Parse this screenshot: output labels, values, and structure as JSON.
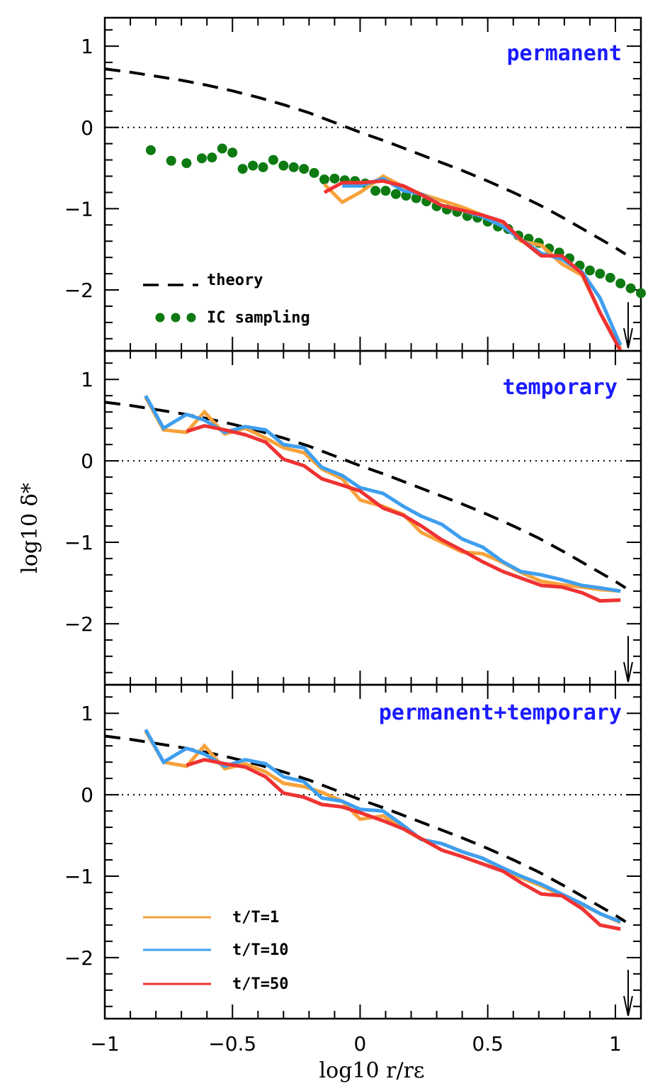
{
  "chart_data": {
    "type": "line",
    "layout": "3 stacked panels sharing x axis",
    "xlabel": "log10 r/rε",
    "ylabel": "log10 δ*",
    "xlim": [
      -1,
      1.1
    ],
    "ylim": [
      -2.75,
      1.35
    ],
    "x_ticks": [
      -1,
      -0.5,
      0,
      0.5,
      1
    ],
    "x_tick_labels": [
      "−1",
      "−0.5",
      "0",
      "0.5",
      "1"
    ],
    "y_ticks": [
      1,
      0,
      -1,
      -2
    ],
    "y_tick_labels": [
      "1",
      "0",
      "−1",
      "−2"
    ],
    "colors": {
      "t1": "#f7a23b",
      "t10": "#3f9fef",
      "t50": "#ef3232",
      "ic": "#0d7a12",
      "theory": "#000000",
      "panel_label": "#1b1bff"
    },
    "theory": {
      "x": [
        -1.0,
        -0.9,
        -0.8,
        -0.7,
        -0.6,
        -0.5,
        -0.4,
        -0.3,
        -0.2,
        -0.1,
        0.0,
        0.1,
        0.2,
        0.3,
        0.4,
        0.5,
        0.6,
        0.7,
        0.8,
        0.9,
        1.0,
        1.04
      ],
      "y": [
        0.72,
        0.68,
        0.63,
        0.58,
        0.52,
        0.45,
        0.37,
        0.28,
        0.18,
        0.06,
        -0.06,
        -0.17,
        -0.29,
        -0.41,
        -0.53,
        -0.66,
        -0.8,
        -0.95,
        -1.12,
        -1.3,
        -1.48,
        -1.56
      ]
    },
    "upper_limit_arrow": {
      "x": 1.05,
      "from": -2.15,
      "to": -2.75
    },
    "panels": [
      {
        "label": "permanent",
        "ic_sampling": {
          "name": "IC sampling",
          "x": [
            -0.82,
            -0.74,
            -0.68,
            -0.62,
            -0.58,
            -0.54,
            -0.5,
            -0.46,
            -0.42,
            -0.38,
            -0.34,
            -0.3,
            -0.26,
            -0.22,
            -0.18,
            -0.14,
            -0.1,
            -0.06,
            -0.02,
            0.02,
            0.06,
            0.1,
            0.14,
            0.18,
            0.22,
            0.26,
            0.3,
            0.34,
            0.38,
            0.42,
            0.46,
            0.5,
            0.54,
            0.58,
            0.62,
            0.66,
            0.7,
            0.74,
            0.78,
            0.82,
            0.86,
            0.9,
            0.94,
            0.98,
            1.02,
            1.06,
            1.1
          ],
          "y": [
            -0.28,
            -0.41,
            -0.44,
            -0.38,
            -0.37,
            -0.26,
            -0.31,
            -0.51,
            -0.47,
            -0.49,
            -0.4,
            -0.47,
            -0.49,
            -0.51,
            -0.56,
            -0.64,
            -0.63,
            -0.65,
            -0.66,
            -0.69,
            -0.78,
            -0.78,
            -0.82,
            -0.84,
            -0.87,
            -0.91,
            -0.97,
            -1.01,
            -1.04,
            -1.09,
            -1.11,
            -1.16,
            -1.22,
            -1.25,
            -1.33,
            -1.37,
            -1.42,
            -1.49,
            -1.54,
            -1.61,
            -1.7,
            -1.76,
            -1.8,
            -1.85,
            -1.92,
            -1.98,
            -2.04
          ]
        },
        "series": [
          {
            "name": "t/T=1",
            "x": [
              -0.14,
              -0.07,
              0.0,
              0.09,
              0.17,
              0.24,
              0.32,
              0.4,
              0.48,
              0.56,
              0.63,
              0.71,
              0.79,
              0.87,
              0.94,
              1.02
            ],
            "y": [
              -0.7,
              -0.92,
              -0.8,
              -0.6,
              -0.73,
              -0.82,
              -0.9,
              -0.98,
              -1.08,
              -1.18,
              -1.4,
              -1.45,
              -1.68,
              -1.82,
              -2.28,
              -2.72
            ]
          },
          {
            "name": "t/T=10",
            "x": [
              -0.07,
              0.0,
              0.09,
              0.17,
              0.24,
              0.32,
              0.4,
              0.48,
              0.56,
              0.63,
              0.71,
              0.79,
              0.87,
              0.94,
              1.02
            ],
            "y": [
              -0.72,
              -0.72,
              -0.63,
              -0.78,
              -0.82,
              -0.96,
              -1.02,
              -1.1,
              -1.22,
              -1.38,
              -1.55,
              -1.62,
              -1.78,
              -2.1,
              -2.68
            ]
          },
          {
            "name": "t/T=50",
            "x": [
              -0.14,
              -0.07,
              0.0,
              0.09,
              0.17,
              0.24,
              0.32,
              0.4,
              0.48,
              0.56,
              0.63,
              0.71,
              0.79,
              0.87,
              0.94,
              1.02
            ],
            "y": [
              -0.8,
              -0.68,
              -0.68,
              -0.66,
              -0.72,
              -0.83,
              -0.96,
              -1.02,
              -1.08,
              -1.16,
              -1.38,
              -1.58,
              -1.58,
              -1.8,
              -2.28,
              -2.75
            ]
          }
        ]
      },
      {
        "label": "temporary",
        "series": [
          {
            "name": "t/T=1",
            "x": [
              -0.84,
              -0.77,
              -0.68,
              -0.61,
              -0.53,
              -0.45,
              -0.37,
              -0.3,
              -0.22,
              -0.15,
              -0.07,
              0.0,
              0.09,
              0.17,
              0.24,
              0.32,
              0.4,
              0.48,
              0.56,
              0.63,
              0.71,
              0.79,
              0.87,
              0.94,
              1.02
            ],
            "y": [
              0.78,
              0.38,
              0.35,
              0.6,
              0.33,
              0.4,
              0.28,
              0.16,
              0.1,
              -0.1,
              -0.22,
              -0.48,
              -0.56,
              -0.66,
              -0.88,
              -1.0,
              -1.12,
              -1.14,
              -1.25,
              -1.37,
              -1.48,
              -1.52,
              -1.55,
              -1.58,
              -1.6
            ]
          },
          {
            "name": "t/T=10",
            "x": [
              -0.84,
              -0.77,
              -0.68,
              -0.61,
              -0.53,
              -0.45,
              -0.37,
              -0.3,
              -0.22,
              -0.15,
              -0.07,
              0.0,
              0.09,
              0.17,
              0.24,
              0.32,
              0.4,
              0.48,
              0.56,
              0.63,
              0.71,
              0.79,
              0.87,
              0.94,
              1.02
            ],
            "y": [
              0.8,
              0.4,
              0.57,
              0.5,
              0.35,
              0.42,
              0.38,
              0.2,
              0.16,
              -0.08,
              -0.18,
              -0.33,
              -0.4,
              -0.56,
              -0.68,
              -0.78,
              -0.96,
              -1.06,
              -1.24,
              -1.36,
              -1.4,
              -1.46,
              -1.53,
              -1.56,
              -1.6
            ]
          },
          {
            "name": "t/T=50",
            "x": [
              -0.68,
              -0.61,
              -0.53,
              -0.45,
              -0.37,
              -0.3,
              -0.22,
              -0.15,
              -0.07,
              0.0,
              0.09,
              0.17,
              0.24,
              0.32,
              0.4,
              0.48,
              0.56,
              0.63,
              0.71,
              0.79,
              0.87,
              0.94,
              1.02
            ],
            "y": [
              0.36,
              0.43,
              0.38,
              0.32,
              0.23,
              0.02,
              -0.06,
              -0.22,
              -0.3,
              -0.37,
              -0.58,
              -0.67,
              -0.8,
              -0.97,
              -1.1,
              -1.24,
              -1.36,
              -1.44,
              -1.53,
              -1.55,
              -1.62,
              -1.72,
              -1.71
            ]
          }
        ]
      },
      {
        "label": "permanent+temporary",
        "series": [
          {
            "name": "t/T=1",
            "x": [
              -0.84,
              -0.77,
              -0.68,
              -0.61,
              -0.53,
              -0.45,
              -0.37,
              -0.3,
              -0.22,
              -0.15,
              -0.07,
              0.0,
              0.09,
              0.17,
              0.24,
              0.32,
              0.4,
              0.48,
              0.56,
              0.63,
              0.71,
              0.79,
              0.87,
              0.94,
              1.02
            ],
            "y": [
              0.78,
              0.4,
              0.35,
              0.6,
              0.32,
              0.38,
              0.28,
              0.14,
              0.1,
              0.03,
              -0.08,
              -0.3,
              -0.26,
              -0.42,
              -0.55,
              -0.6,
              -0.7,
              -0.78,
              -0.92,
              -1.02,
              -1.12,
              -1.24,
              -1.35,
              -1.46,
              -1.57
            ]
          },
          {
            "name": "t/T=10",
            "x": [
              -0.84,
              -0.77,
              -0.68,
              -0.61,
              -0.53,
              -0.45,
              -0.37,
              -0.3,
              -0.22,
              -0.15,
              -0.07,
              0.0,
              0.09,
              0.17,
              0.24,
              0.32,
              0.4,
              0.48,
              0.56,
              0.63,
              0.71,
              0.79,
              0.87,
              0.94,
              1.02
            ],
            "y": [
              0.8,
              0.4,
              0.57,
              0.5,
              0.35,
              0.43,
              0.38,
              0.22,
              0.16,
              -0.04,
              -0.08,
              -0.18,
              -0.2,
              -0.38,
              -0.55,
              -0.6,
              -0.7,
              -0.78,
              -0.9,
              -1.0,
              -1.1,
              -1.22,
              -1.34,
              -1.46,
              -1.56
            ]
          },
          {
            "name": "t/T=50",
            "x": [
              -0.68,
              -0.61,
              -0.53,
              -0.45,
              -0.37,
              -0.3,
              -0.22,
              -0.15,
              -0.07,
              0.0,
              0.09,
              0.17,
              0.24,
              0.32,
              0.4,
              0.48,
              0.56,
              0.63,
              0.71,
              0.79,
              0.87,
              0.94,
              1.02
            ],
            "y": [
              0.36,
              0.43,
              0.38,
              0.34,
              0.22,
              0.02,
              -0.03,
              -0.12,
              -0.15,
              -0.22,
              -0.32,
              -0.42,
              -0.54,
              -0.68,
              -0.76,
              -0.85,
              -0.94,
              -1.08,
              -1.22,
              -1.24,
              -1.4,
              -1.6,
              -1.65
            ]
          }
        ]
      }
    ],
    "legend_top": {
      "theory_label": "theory",
      "ic_label": "IC sampling"
    },
    "legend_bottom": {
      "labels": [
        "t/T=1",
        "t/T=10",
        "t/T=50"
      ]
    }
  }
}
